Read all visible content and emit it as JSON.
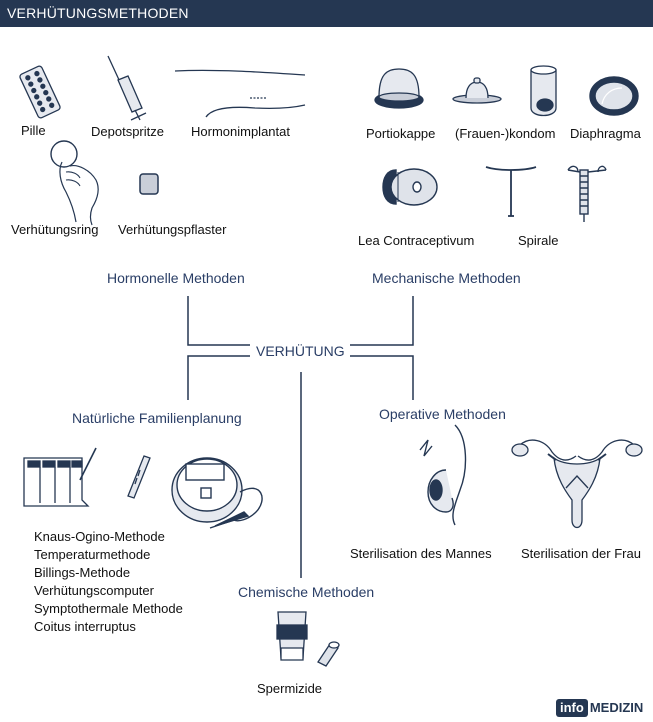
{
  "header": {
    "title": "VERHÜTUNGSMETHODEN"
  },
  "center": {
    "label": "VERHÜTUNG"
  },
  "categories": {
    "hormonal": "Hormonelle Methoden",
    "mechanical": "Mechanische Methoden",
    "natural": "Natürliche Familienplanung",
    "operative": "Operative Methoden",
    "chemical": "Chemische Methoden"
  },
  "hormonal_items": [
    "Pille",
    "Depotspritze",
    "Hormonimplantat",
    "Verhütungsring",
    "Verhütungspflaster"
  ],
  "mechanical_items": [
    "Portiokappe",
    "(Frauen-)kondom",
    "Diaphragma",
    "Lea Contraceptivum",
    "Spirale"
  ],
  "natural_items": [
    "Knaus-Ogino-Methode",
    "Temperaturmethode",
    "Billings-Methode",
    "Verhütungscomputer",
    "Symptothermale Methode",
    "Coitus interruptus"
  ],
  "operative_items": [
    "Sterilisation des Mannes",
    "Sterilisation der Frau"
  ],
  "chemical_items": [
    "Spermizide"
  ],
  "logo": {
    "info": "info",
    "medizin": "MEDIZIN"
  },
  "colors": {
    "banner": "#253752",
    "category_text": "#2a3e66",
    "line": "#253752"
  }
}
